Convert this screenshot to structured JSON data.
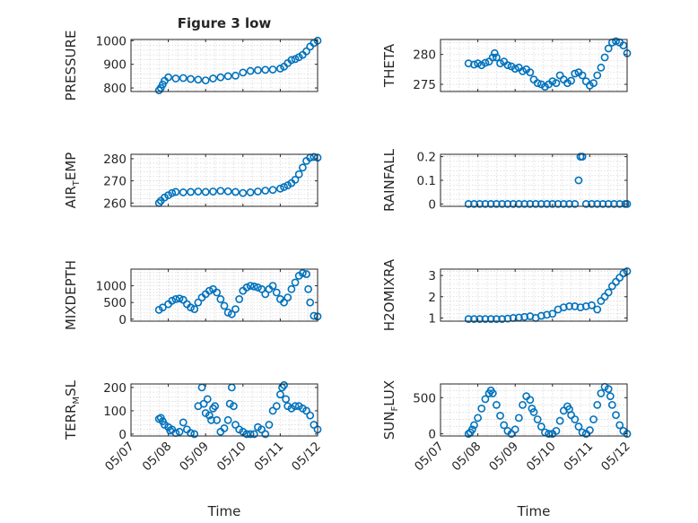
{
  "chart_data": [
    {
      "type": "scatter",
      "title": "Figure 3 low",
      "ylabel": {
        "main": "PRESSURE",
        "sub": ""
      },
      "ylim": [
        785,
        1005
      ],
      "yticks": [
        800,
        900,
        1000
      ],
      "color": "#0072BD",
      "x_range": [
        "05/07",
        "05/12"
      ],
      "xlabel": "",
      "x": [
        0.75,
        0.8,
        0.85,
        0.9,
        1.0,
        1.2,
        1.4,
        1.6,
        1.8,
        2.0,
        2.2,
        2.4,
        2.6,
        2.8,
        3.0,
        3.2,
        3.4,
        3.6,
        3.8,
        4.0,
        4.1,
        4.2,
        4.3,
        4.4,
        4.5,
        4.6,
        4.7,
        4.8,
        4.9,
        5.0
      ],
      "y": [
        790,
        800,
        815,
        830,
        845,
        840,
        842,
        838,
        835,
        832,
        840,
        845,
        850,
        852,
        865,
        872,
        875,
        877,
        878,
        882,
        890,
        905,
        918,
        922,
        930,
        940,
        955,
        975,
        990,
        1000
      ]
    },
    {
      "type": "scatter",
      "title": "",
      "ylabel": {
        "main": "THETA",
        "sub": ""
      },
      "ylim": [
        273.8,
        282.5
      ],
      "yticks": [
        275,
        280
      ],
      "color": "#0072BD",
      "x_range": [
        "05/07",
        "05/12"
      ],
      "xlabel": "",
      "x": [
        0.75,
        0.9,
        1.0,
        1.1,
        1.2,
        1.3,
        1.4,
        1.45,
        1.5,
        1.6,
        1.7,
        1.8,
        1.9,
        2.0,
        2.1,
        2.2,
        2.3,
        2.4,
        2.5,
        2.6,
        2.7,
        2.8,
        2.9,
        3.0,
        3.1,
        3.2,
        3.3,
        3.4,
        3.5,
        3.6,
        3.7,
        3.8,
        3.9,
        4.0,
        4.1,
        4.2,
        4.3,
        4.4,
        4.5,
        4.6,
        4.7,
        4.8,
        4.9,
        5.0
      ],
      "y": [
        278.5,
        278.3,
        278.5,
        278.2,
        278.6,
        278.8,
        279.5,
        280.2,
        279.5,
        278.5,
        278.8,
        278.2,
        278.0,
        277.6,
        277.8,
        277.2,
        277.5,
        277.0,
        275.8,
        275.2,
        275.0,
        274.6,
        275.0,
        275.5,
        275.2,
        276.5,
        275.8,
        275.2,
        275.6,
        276.8,
        277.0,
        276.5,
        275.5,
        274.8,
        275.2,
        276.5,
        277.8,
        279.5,
        281.0,
        282.0,
        282.2,
        282.0,
        281.5,
        280.2
      ]
    },
    {
      "type": "scatter",
      "title": "",
      "ylabel": {
        "main": "AIR",
        "sub": "T",
        "rest": "EMP"
      },
      "ylim": [
        258.5,
        282
      ],
      "yticks": [
        260,
        270,
        280
      ],
      "color": "#0072BD",
      "x_range": [
        "05/07",
        "05/12"
      ],
      "xlabel": "",
      "x": [
        0.75,
        0.8,
        0.9,
        1.0,
        1.1,
        1.2,
        1.4,
        1.6,
        1.8,
        2.0,
        2.2,
        2.4,
        2.6,
        2.8,
        3.0,
        3.2,
        3.4,
        3.6,
        3.8,
        4.0,
        4.1,
        4.2,
        4.3,
        4.4,
        4.5,
        4.6,
        4.7,
        4.8,
        4.9,
        5.0
      ],
      "y": [
        260,
        261,
        262.5,
        263.5,
        264.5,
        265,
        264.8,
        265,
        265.2,
        265,
        265.2,
        265.5,
        265.3,
        265,
        264.5,
        264.8,
        265.2,
        265.6,
        265.9,
        266.5,
        267.2,
        268,
        269,
        270.5,
        273,
        276,
        279,
        280.5,
        280.8,
        280.5
      ]
    },
    {
      "type": "scatter",
      "title": "",
      "ylabel": {
        "main": "RAINFALL",
        "sub": ""
      },
      "ylim": [
        -0.01,
        0.21
      ],
      "yticks": [
        0,
        0.1,
        0.2
      ],
      "color": "#0072BD",
      "x_range": [
        "05/07",
        "05/12"
      ],
      "xlabel": "",
      "x": [
        0.75,
        0.9,
        1.05,
        1.2,
        1.35,
        1.5,
        1.65,
        1.8,
        1.95,
        2.1,
        2.25,
        2.4,
        2.55,
        2.7,
        2.85,
        3.0,
        3.15,
        3.3,
        3.45,
        3.6,
        3.7,
        3.75,
        3.8,
        3.9,
        4.05,
        4.2,
        4.35,
        4.5,
        4.65,
        4.8,
        4.95,
        5.0
      ],
      "y": [
        0,
        0,
        0,
        0,
        0,
        0,
        0,
        0,
        0,
        0,
        0,
        0,
        0,
        0,
        0,
        0,
        0,
        0,
        0,
        0,
        0.1,
        0.2,
        0.2,
        0,
        0,
        0,
        0,
        0,
        0,
        0,
        0,
        0
      ]
    },
    {
      "type": "scatter",
      "title": "",
      "ylabel": {
        "main": "MIXDEPTH",
        "sub": ""
      },
      "ylim": [
        -60,
        1500
      ],
      "yticks": [
        0,
        500,
        1000
      ],
      "color": "#0072BD",
      "x_range": [
        "05/07",
        "05/12"
      ],
      "xlabel": "",
      "x": [
        0.75,
        0.85,
        1.0,
        1.1,
        1.2,
        1.3,
        1.4,
        1.5,
        1.6,
        1.7,
        1.8,
        1.9,
        2.0,
        2.1,
        2.2,
        2.3,
        2.4,
        2.5,
        2.6,
        2.7,
        2.8,
        2.9,
        3.0,
        3.1,
        3.2,
        3.3,
        3.4,
        3.5,
        3.6,
        3.7,
        3.8,
        3.9,
        4.0,
        4.1,
        4.2,
        4.3,
        4.4,
        4.5,
        4.6,
        4.7,
        4.75,
        4.8,
        4.9,
        5.0
      ],
      "y": [
        280,
        350,
        450,
        550,
        600,
        620,
        580,
        450,
        350,
        300,
        500,
        650,
        750,
        850,
        900,
        800,
        600,
        400,
        200,
        150,
        300,
        600,
        850,
        950,
        1000,
        980,
        950,
        900,
        750,
        900,
        1000,
        800,
        600,
        500,
        650,
        900,
        1100,
        1300,
        1380,
        1350,
        900,
        500,
        100,
        80
      ]
    },
    {
      "type": "scatter",
      "title": "",
      "ylabel": {
        "main": "H2OMIXRA",
        "sub": ""
      },
      "ylim": [
        0.85,
        3.3
      ],
      "yticks": [
        1,
        2,
        3
      ],
      "color": "#0072BD",
      "x_range": [
        "05/07",
        "05/12"
      ],
      "xlabel": "",
      "x": [
        0.75,
        0.9,
        1.05,
        1.2,
        1.35,
        1.5,
        1.65,
        1.8,
        1.95,
        2.1,
        2.25,
        2.4,
        2.55,
        2.7,
        2.85,
        3.0,
        3.15,
        3.3,
        3.45,
        3.6,
        3.75,
        3.9,
        4.05,
        4.2,
        4.3,
        4.4,
        4.5,
        4.6,
        4.7,
        4.8,
        4.9,
        5.0
      ],
      "y": [
        0.95,
        0.95,
        0.95,
        0.95,
        0.95,
        0.95,
        0.95,
        0.97,
        1.0,
        1.02,
        1.05,
        1.08,
        1.0,
        1.1,
        1.15,
        1.2,
        1.4,
        1.5,
        1.55,
        1.55,
        1.5,
        1.55,
        1.6,
        1.4,
        1.8,
        2.0,
        2.2,
        2.5,
        2.7,
        2.9,
        3.1,
        3.2
      ]
    },
    {
      "type": "scatter",
      "title": "",
      "ylabel": {
        "main": "TERR",
        "sub": "M",
        "rest": "SL"
      },
      "ylim": [
        -8,
        215
      ],
      "yticks": [
        0,
        100,
        200
      ],
      "color": "#0072BD",
      "x_range": [
        "05/07",
        "05/12"
      ],
      "xlabel": "Time",
      "x": [
        0.75,
        0.8,
        0.85,
        0.9,
        1.0,
        1.05,
        1.1,
        1.2,
        1.3,
        1.4,
        1.5,
        1.6,
        1.7,
        1.8,
        1.9,
        1.95,
        2.0,
        2.05,
        2.1,
        2.15,
        2.2,
        2.25,
        2.3,
        2.4,
        2.5,
        2.6,
        2.65,
        2.7,
        2.75,
        2.8,
        2.9,
        3.0,
        3.1,
        3.2,
        3.3,
        3.4,
        3.5,
        3.6,
        3.7,
        3.8,
        3.9,
        4.0,
        4.05,
        4.1,
        4.15,
        4.2,
        4.3,
        4.4,
        4.5,
        4.6,
        4.7,
        4.8,
        4.9,
        5.0
      ],
      "y": [
        65,
        70,
        55,
        40,
        30,
        15,
        20,
        5,
        10,
        50,
        20,
        5,
        0,
        120,
        200,
        130,
        90,
        150,
        80,
        60,
        110,
        120,
        60,
        10,
        25,
        60,
        130,
        200,
        120,
        40,
        20,
        10,
        0,
        0,
        0,
        30,
        20,
        0,
        40,
        100,
        120,
        170,
        200,
        210,
        150,
        120,
        110,
        120,
        120,
        110,
        100,
        80,
        40,
        20
      ]
    },
    {
      "type": "scatter",
      "title": "",
      "ylabel": {
        "main": "SUN",
        "sub": "F",
        "rest": "LUX"
      },
      "ylim": [
        -30,
        690
      ],
      "yticks": [
        0,
        500
      ],
      "color": "#0072BD",
      "x_range": [
        "05/07",
        "05/12"
      ],
      "xlabel": "Time",
      "x": [
        0.75,
        0.8,
        0.85,
        0.9,
        1.0,
        1.1,
        1.2,
        1.3,
        1.35,
        1.4,
        1.5,
        1.6,
        1.7,
        1.8,
        1.9,
        2.0,
        2.1,
        2.2,
        2.3,
        2.4,
        2.45,
        2.5,
        2.6,
        2.7,
        2.8,
        2.9,
        3.0,
        3.1,
        3.2,
        3.3,
        3.4,
        3.45,
        3.5,
        3.6,
        3.7,
        3.8,
        3.9,
        4.0,
        4.1,
        4.2,
        4.3,
        4.4,
        4.5,
        4.55,
        4.6,
        4.7,
        4.8,
        4.9,
        5.0
      ],
      "y": [
        0,
        20,
        60,
        120,
        220,
        350,
        480,
        560,
        600,
        560,
        400,
        250,
        120,
        40,
        0,
        60,
        220,
        400,
        520,
        470,
        350,
        300,
        200,
        100,
        20,
        0,
        0,
        40,
        180,
        320,
        380,
        340,
        260,
        200,
        100,
        20,
        0,
        50,
        200,
        400,
        560,
        650,
        620,
        520,
        400,
        260,
        120,
        40,
        0
      ]
    }
  ]
}
